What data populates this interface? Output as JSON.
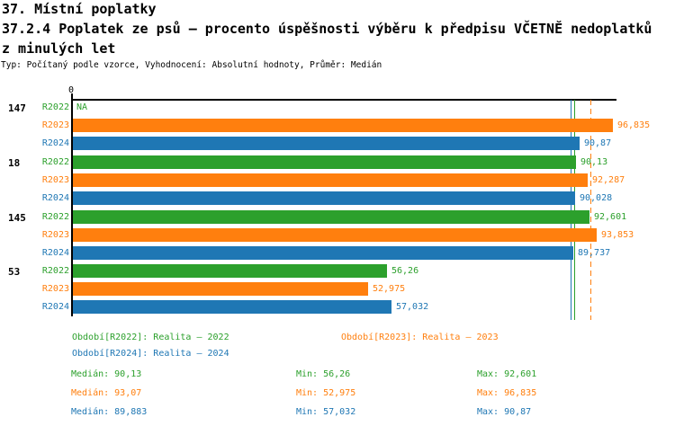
{
  "header": {
    "title": "37. Místní poplatky",
    "subtitle": "37.2.4 Poplatek ze psů – procento úspěšnosti výběru k předpisu VČETNĚ nedoplatků",
    "subtitle2": "z minulých let",
    "meta": "Typ: Počítaný podle vzorce, Vyhodnocení: Absolutní hodnoty, Průměr: Medián"
  },
  "colors": {
    "r2022_green": "#2CA02C",
    "r2023_orange": "#FF7F0E",
    "r2024_blue": "#1F77B4",
    "axis": "#000000"
  },
  "chart_data": {
    "type": "bar",
    "orientation": "horizontal",
    "title": "37.2.4 Poplatek ze psů – procento úspěšnosti výběru k předpisu VČETNĚ nedoplatků z minulých let",
    "x_axis": {
      "zero_label": "0",
      "min": 0,
      "implied_max": 100
    },
    "series_names": [
      "R2022",
      "R2023",
      "R2024"
    ],
    "groups": [
      {
        "label": "147",
        "bars": [
          {
            "series": "R2022",
            "value": null,
            "display": "NA"
          },
          {
            "series": "R2023",
            "value": 96.835,
            "display": "96,835"
          },
          {
            "series": "R2024",
            "value": 90.87,
            "display": "90,87"
          }
        ]
      },
      {
        "label": "18",
        "bars": [
          {
            "series": "R2022",
            "value": 90.13,
            "display": "90,13"
          },
          {
            "series": "R2023",
            "value": 92.287,
            "display": "92,287"
          },
          {
            "series": "R2024",
            "value": 90.028,
            "display": "90,028"
          }
        ]
      },
      {
        "label": "145",
        "bars": [
          {
            "series": "R2022",
            "value": 92.601,
            "display": "92,601"
          },
          {
            "series": "R2023",
            "value": 93.853,
            "display": "93,853"
          },
          {
            "series": "R2024",
            "value": 89.737,
            "display": "89,737"
          }
        ]
      },
      {
        "label": "53",
        "bars": [
          {
            "series": "R2022",
            "value": 56.26,
            "display": "56,26"
          },
          {
            "series": "R2023",
            "value": 52.975,
            "display": "52,975"
          },
          {
            "series": "R2024",
            "value": 57.032,
            "display": "57,032"
          }
        ]
      }
    ],
    "median_lines": [
      {
        "series": "R2024",
        "value": 89.883,
        "style": "solid",
        "color": "blue"
      },
      {
        "series": "R2022",
        "value": 90.13,
        "style": "solid",
        "color": "green"
      },
      {
        "series": "R2023",
        "value": 93.07,
        "style": "dashed",
        "color": "orange"
      }
    ],
    "legend_position": "bottom"
  },
  "legend": {
    "r2022": "Období[R2022]: Realita – 2022",
    "r2023": "Období[R2023]: Realita – 2023",
    "r2024": "Období[R2024]: Realita – 2024"
  },
  "stats": {
    "rows": [
      {
        "series": "R2022",
        "median": "Medián: 90,13",
        "min": "Min: 56,26",
        "max": "Max: 92,601"
      },
      {
        "series": "R2023",
        "median": "Medián: 93,07",
        "min": "Min: 52,975",
        "max": "Max: 96,835"
      },
      {
        "series": "R2024",
        "median": "Medián: 89,883",
        "min": "Min: 57,032",
        "max": "Max: 90,87"
      }
    ]
  }
}
